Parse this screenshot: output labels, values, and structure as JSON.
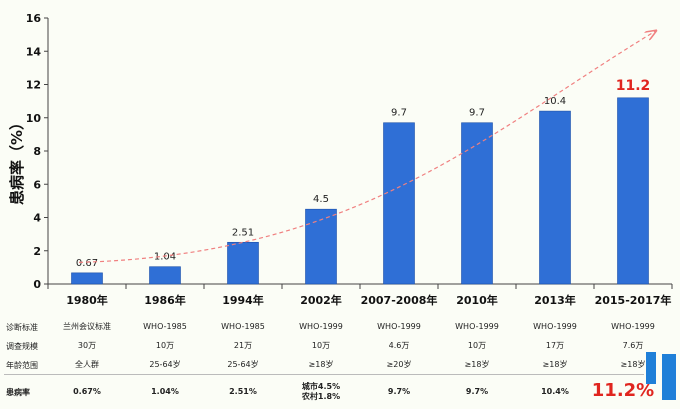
{
  "chart_data": {
    "type": "bar",
    "ylabel": "患病率（%）",
    "ylim": [
      0,
      16
    ],
    "yticks": [
      0,
      2,
      4,
      6,
      8,
      10,
      12,
      14,
      16
    ],
    "categories": [
      "1980年",
      "1986年",
      "1994年",
      "2002年",
      "2007-2008年",
      "2010年",
      "2013年",
      "2015-2017年"
    ],
    "values": [
      0.67,
      1.04,
      2.51,
      4.5,
      9.7,
      9.7,
      10.4,
      11.2
    ],
    "data_labels": [
      "0.67",
      "1.04",
      "2.51",
      "4.5",
      "9.7",
      "9.7",
      "10.4",
      "11.2"
    ],
    "highlight_last_label_color": "#e0251f",
    "bar_color": "#2f6fd6",
    "trend_arrow_color": "#f08080",
    "grid": false
  },
  "table": {
    "rows": [
      {
        "label": "诊断标准",
        "cells": [
          "兰州会议标准",
          "WHO-1985",
          "WHO-1985",
          "WHO-1999",
          "WHO-1999",
          "WHO-1999",
          "WHO-1999",
          "WHO-1999"
        ]
      },
      {
        "label": "调查规模",
        "cells": [
          "30万",
          "10万",
          "21万",
          "10万",
          "4.6万",
          "10万",
          "17万",
          "7.6万"
        ]
      },
      {
        "label": "年龄范围",
        "cells": [
          "全人群",
          "25-64岁",
          "25-64岁",
          "≥18岁",
          "≥20岁",
          "≥18岁",
          "≥18岁",
          "≥18岁"
        ]
      }
    ],
    "prevalence_row": {
      "label": "患病率",
      "cells": [
        "0.67%",
        "1.04%",
        "2.51%",
        "城市4.5%\n农村1.8%",
        "9.7%",
        "9.7%",
        "10.4%",
        "11.2%"
      ]
    }
  }
}
